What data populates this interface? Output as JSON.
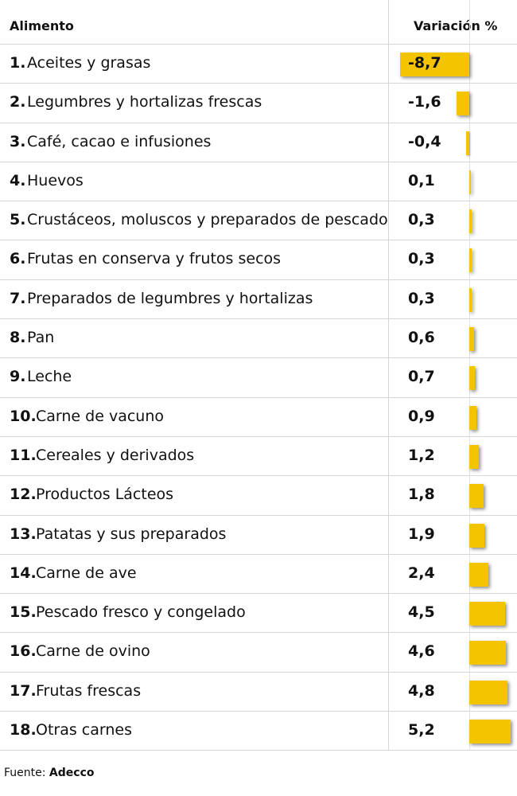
{
  "headers": {
    "food": "Alimento",
    "variation": "Variación %"
  },
  "source": {
    "label": "Fuente:",
    "name": "Adecco"
  },
  "chart_data": {
    "type": "bar",
    "categories": [
      "Aceites y grasas",
      "Legumbres y hortalizas frescas",
      "Café, cacao e infusiones",
      "Huevos",
      "Crustáceos, moluscos y preparados de pescado",
      "Frutas en conserva y frutos secos",
      "Preparados de legumbres y hortalizas",
      "Pan",
      "Leche",
      "Carne de vacuno",
      "Cereales y derivados",
      "Productos Lácteos",
      "Patatas y sus preparados",
      "Carne de ave",
      "Pescado fresco y congelado",
      "Carne de ovino",
      "Frutas frescas",
      "Otras carnes"
    ],
    "ranks": [
      "1.",
      "2.",
      "3.",
      "4.",
      "5.",
      "6.",
      "7.",
      "8.",
      "9.",
      "10.",
      "11.",
      "12.",
      "13.",
      "14.",
      "15.",
      "16.",
      "17.",
      "18."
    ],
    "values": [
      -8.7,
      -1.6,
      -0.4,
      0.1,
      0.3,
      0.3,
      0.3,
      0.6,
      0.7,
      0.9,
      1.2,
      1.8,
      1.9,
      2.4,
      4.5,
      4.6,
      4.8,
      5.2
    ],
    "value_labels": [
      "-8,7",
      "-1,6",
      "-0,4",
      "0,1",
      "0,3",
      "0,3",
      "0,3",
      "0,6",
      "0,7",
      "0,9",
      "1,2",
      "1,8",
      "1,9",
      "2,4",
      "4,5",
      "4,6",
      "4,8",
      "5,2"
    ],
    "bar_color": "#f5c400"
  }
}
